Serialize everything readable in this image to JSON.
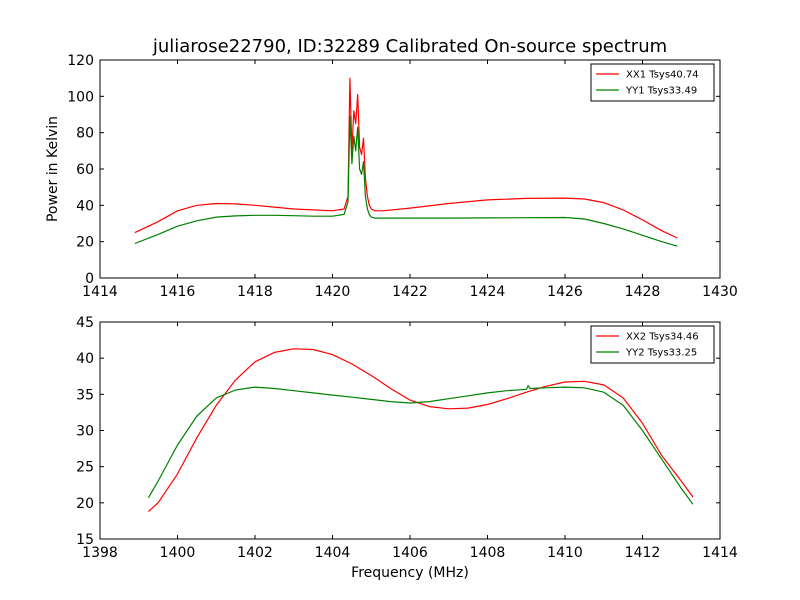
{
  "figure": {
    "title": "juliarose22790, ID:32289 Calibrated On-source spectrum"
  },
  "chart_data": [
    {
      "type": "line",
      "title": "juliarose22790, ID:32289 Calibrated On-source spectrum",
      "xlabel": "",
      "ylabel": "Power in Kelvin",
      "xlim": [
        1414,
        1430
      ],
      "ylim": [
        0,
        120
      ],
      "xticks": [
        "1414",
        "1416",
        "1418",
        "1420",
        "1422",
        "1424",
        "1426",
        "1428",
        "1430"
      ],
      "yticks": [
        "0",
        "20",
        "40",
        "60",
        "80",
        "100",
        "120"
      ],
      "grid": false,
      "legend_position": "top-right",
      "series": [
        {
          "name": "XX1 Tsys40.74",
          "color": "#ff0000",
          "x": [
            1414.9,
            1415.5,
            1416.0,
            1416.5,
            1417.0,
            1417.5,
            1418.0,
            1418.5,
            1419.0,
            1419.5,
            1420.0,
            1420.3,
            1420.4,
            1420.45,
            1420.5,
            1420.55,
            1420.6,
            1420.65,
            1420.7,
            1420.75,
            1420.8,
            1420.85,
            1420.9,
            1420.95,
            1421.0,
            1421.1,
            1421.3,
            1422.0,
            1423.0,
            1424.0,
            1425.0,
            1426.0,
            1426.5,
            1427.0,
            1427.5,
            1428.0,
            1428.5,
            1428.9
          ],
          "y": [
            25,
            31,
            37,
            40,
            41,
            40.8,
            40,
            39,
            38,
            37.5,
            37,
            38,
            45,
            110,
            70,
            92,
            85,
            101,
            72,
            68,
            77,
            55,
            45,
            40,
            38,
            37,
            37,
            38.5,
            41,
            43,
            43.8,
            44,
            43.5,
            41.5,
            37.5,
            32,
            26,
            22
          ]
        },
        {
          "name": "YY1 Tsys33.49",
          "color": "#008000",
          "x": [
            1414.9,
            1415.5,
            1416.0,
            1416.5,
            1417.0,
            1417.5,
            1418.0,
            1418.5,
            1419.0,
            1419.5,
            1420.0,
            1420.3,
            1420.4,
            1420.45,
            1420.5,
            1420.55,
            1420.6,
            1420.65,
            1420.7,
            1420.75,
            1420.8,
            1420.85,
            1420.9,
            1420.95,
            1421.0,
            1421.1,
            1421.3,
            1422.0,
            1423.0,
            1424.0,
            1425.0,
            1426.0,
            1426.5,
            1427.0,
            1427.5,
            1428.0,
            1428.5,
            1428.9
          ],
          "y": [
            19,
            24,
            28.5,
            31.5,
            33.5,
            34.2,
            34.5,
            34.5,
            34.3,
            34,
            34,
            35,
            42,
            89,
            63,
            78,
            70,
            83,
            60,
            57,
            64,
            45,
            38,
            35,
            33.5,
            33,
            33,
            33,
            33,
            33.1,
            33.2,
            33.3,
            32.5,
            30,
            27,
            23.5,
            20,
            17.5
          ]
        }
      ]
    },
    {
      "type": "line",
      "title": "",
      "xlabel": "Frequency (MHz)",
      "ylabel": "",
      "xlim": [
        1398,
        1414
      ],
      "ylim": [
        15,
        45
      ],
      "xticks": [
        "1398",
        "1400",
        "1402",
        "1404",
        "1406",
        "1408",
        "1410",
        "1412",
        "1414"
      ],
      "yticks": [
        "15",
        "20",
        "25",
        "30",
        "35",
        "40",
        "45"
      ],
      "grid": false,
      "legend_position": "top-right",
      "series": [
        {
          "name": "XX2 Tsys34.46",
          "color": "#ff0000",
          "x": [
            1399.25,
            1399.5,
            1400.0,
            1400.5,
            1401.0,
            1401.5,
            1402.0,
            1402.5,
            1403.0,
            1403.5,
            1404.0,
            1404.5,
            1405.0,
            1405.5,
            1406.0,
            1406.5,
            1407.0,
            1407.5,
            1408.0,
            1408.5,
            1409.0,
            1409.5,
            1410.0,
            1410.5,
            1411.0,
            1411.5,
            1412.0,
            1412.5,
            1413.0,
            1413.3
          ],
          "y": [
            18.8,
            20,
            24,
            29,
            33.5,
            37,
            39.5,
            40.8,
            41.3,
            41.2,
            40.5,
            39.2,
            37.6,
            35.8,
            34.2,
            33.3,
            33,
            33.1,
            33.6,
            34.4,
            35.3,
            36.1,
            36.7,
            36.8,
            36.3,
            34.5,
            31,
            26.5,
            23,
            20.8
          ]
        },
        {
          "name": "YY2 Tsys33.25",
          "color": "#008000",
          "x": [
            1399.25,
            1399.5,
            1400.0,
            1400.5,
            1401.0,
            1401.5,
            1402.0,
            1402.5,
            1403.0,
            1403.5,
            1404.0,
            1404.5,
            1405.0,
            1405.5,
            1406.0,
            1406.5,
            1407.0,
            1407.5,
            1408.0,
            1408.5,
            1409.0,
            1409.05,
            1409.1,
            1409.5,
            1410.0,
            1410.5,
            1411.0,
            1411.5,
            1412.0,
            1412.5,
            1413.0,
            1413.3
          ],
          "y": [
            20.7,
            23,
            28,
            32,
            34.5,
            35.6,
            36,
            35.8,
            35.5,
            35.2,
            34.9,
            34.6,
            34.3,
            34,
            33.8,
            34,
            34.4,
            34.8,
            35.2,
            35.5,
            35.7,
            36.2,
            35.8,
            35.9,
            36,
            35.9,
            35.3,
            33.5,
            30,
            26,
            22,
            19.8
          ]
        }
      ]
    }
  ]
}
